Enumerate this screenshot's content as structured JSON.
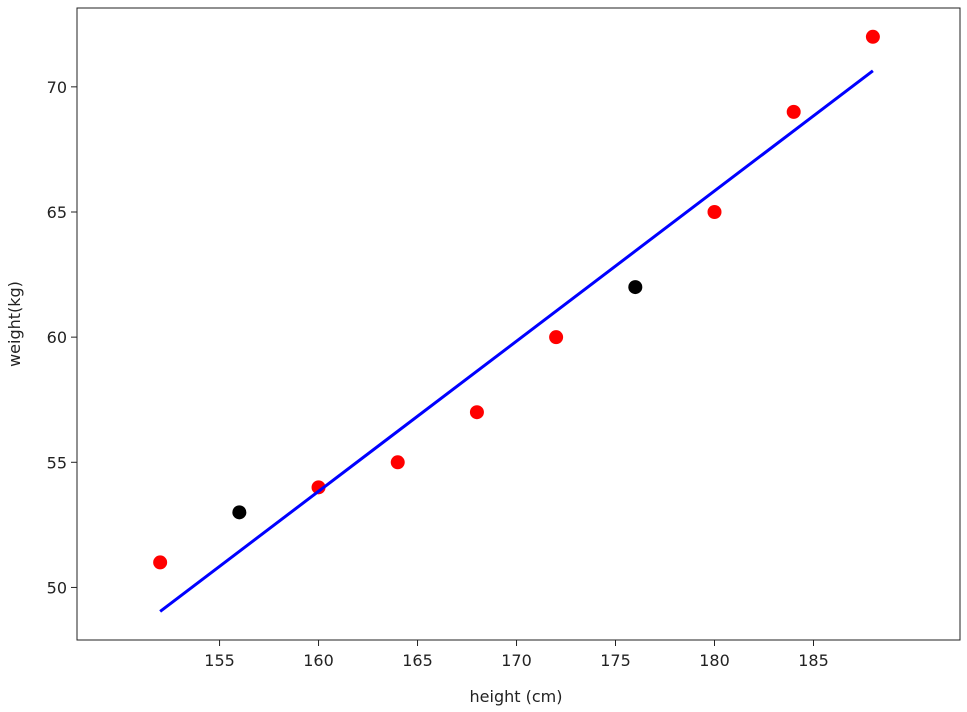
{
  "chart_data": {
    "type": "scatter",
    "xlabel": "height (cm)",
    "ylabel": "weight(kg)",
    "xlim": [
      147.8,
      192.4
    ],
    "ylim": [
      47.9,
      73.15
    ],
    "xticks": [
      155,
      160,
      165,
      170,
      175,
      180,
      185
    ],
    "yticks": [
      50,
      55,
      60,
      65,
      70
    ],
    "grid": false,
    "series": [
      {
        "type": "scatter",
        "color": "#ff0000",
        "x": [
          152,
          160,
          164,
          168,
          172,
          180,
          184,
          188
        ],
        "values": [
          51,
          54,
          55,
          57,
          60,
          65,
          69,
          72
        ]
      },
      {
        "type": "scatter",
        "color": "#000000",
        "x": [
          156,
          176
        ],
        "values": [
          53,
          62
        ]
      },
      {
        "type": "line",
        "color": "#0000ff",
        "x": [
          152,
          188
        ],
        "values": [
          49.04,
          70.64
        ]
      }
    ]
  }
}
